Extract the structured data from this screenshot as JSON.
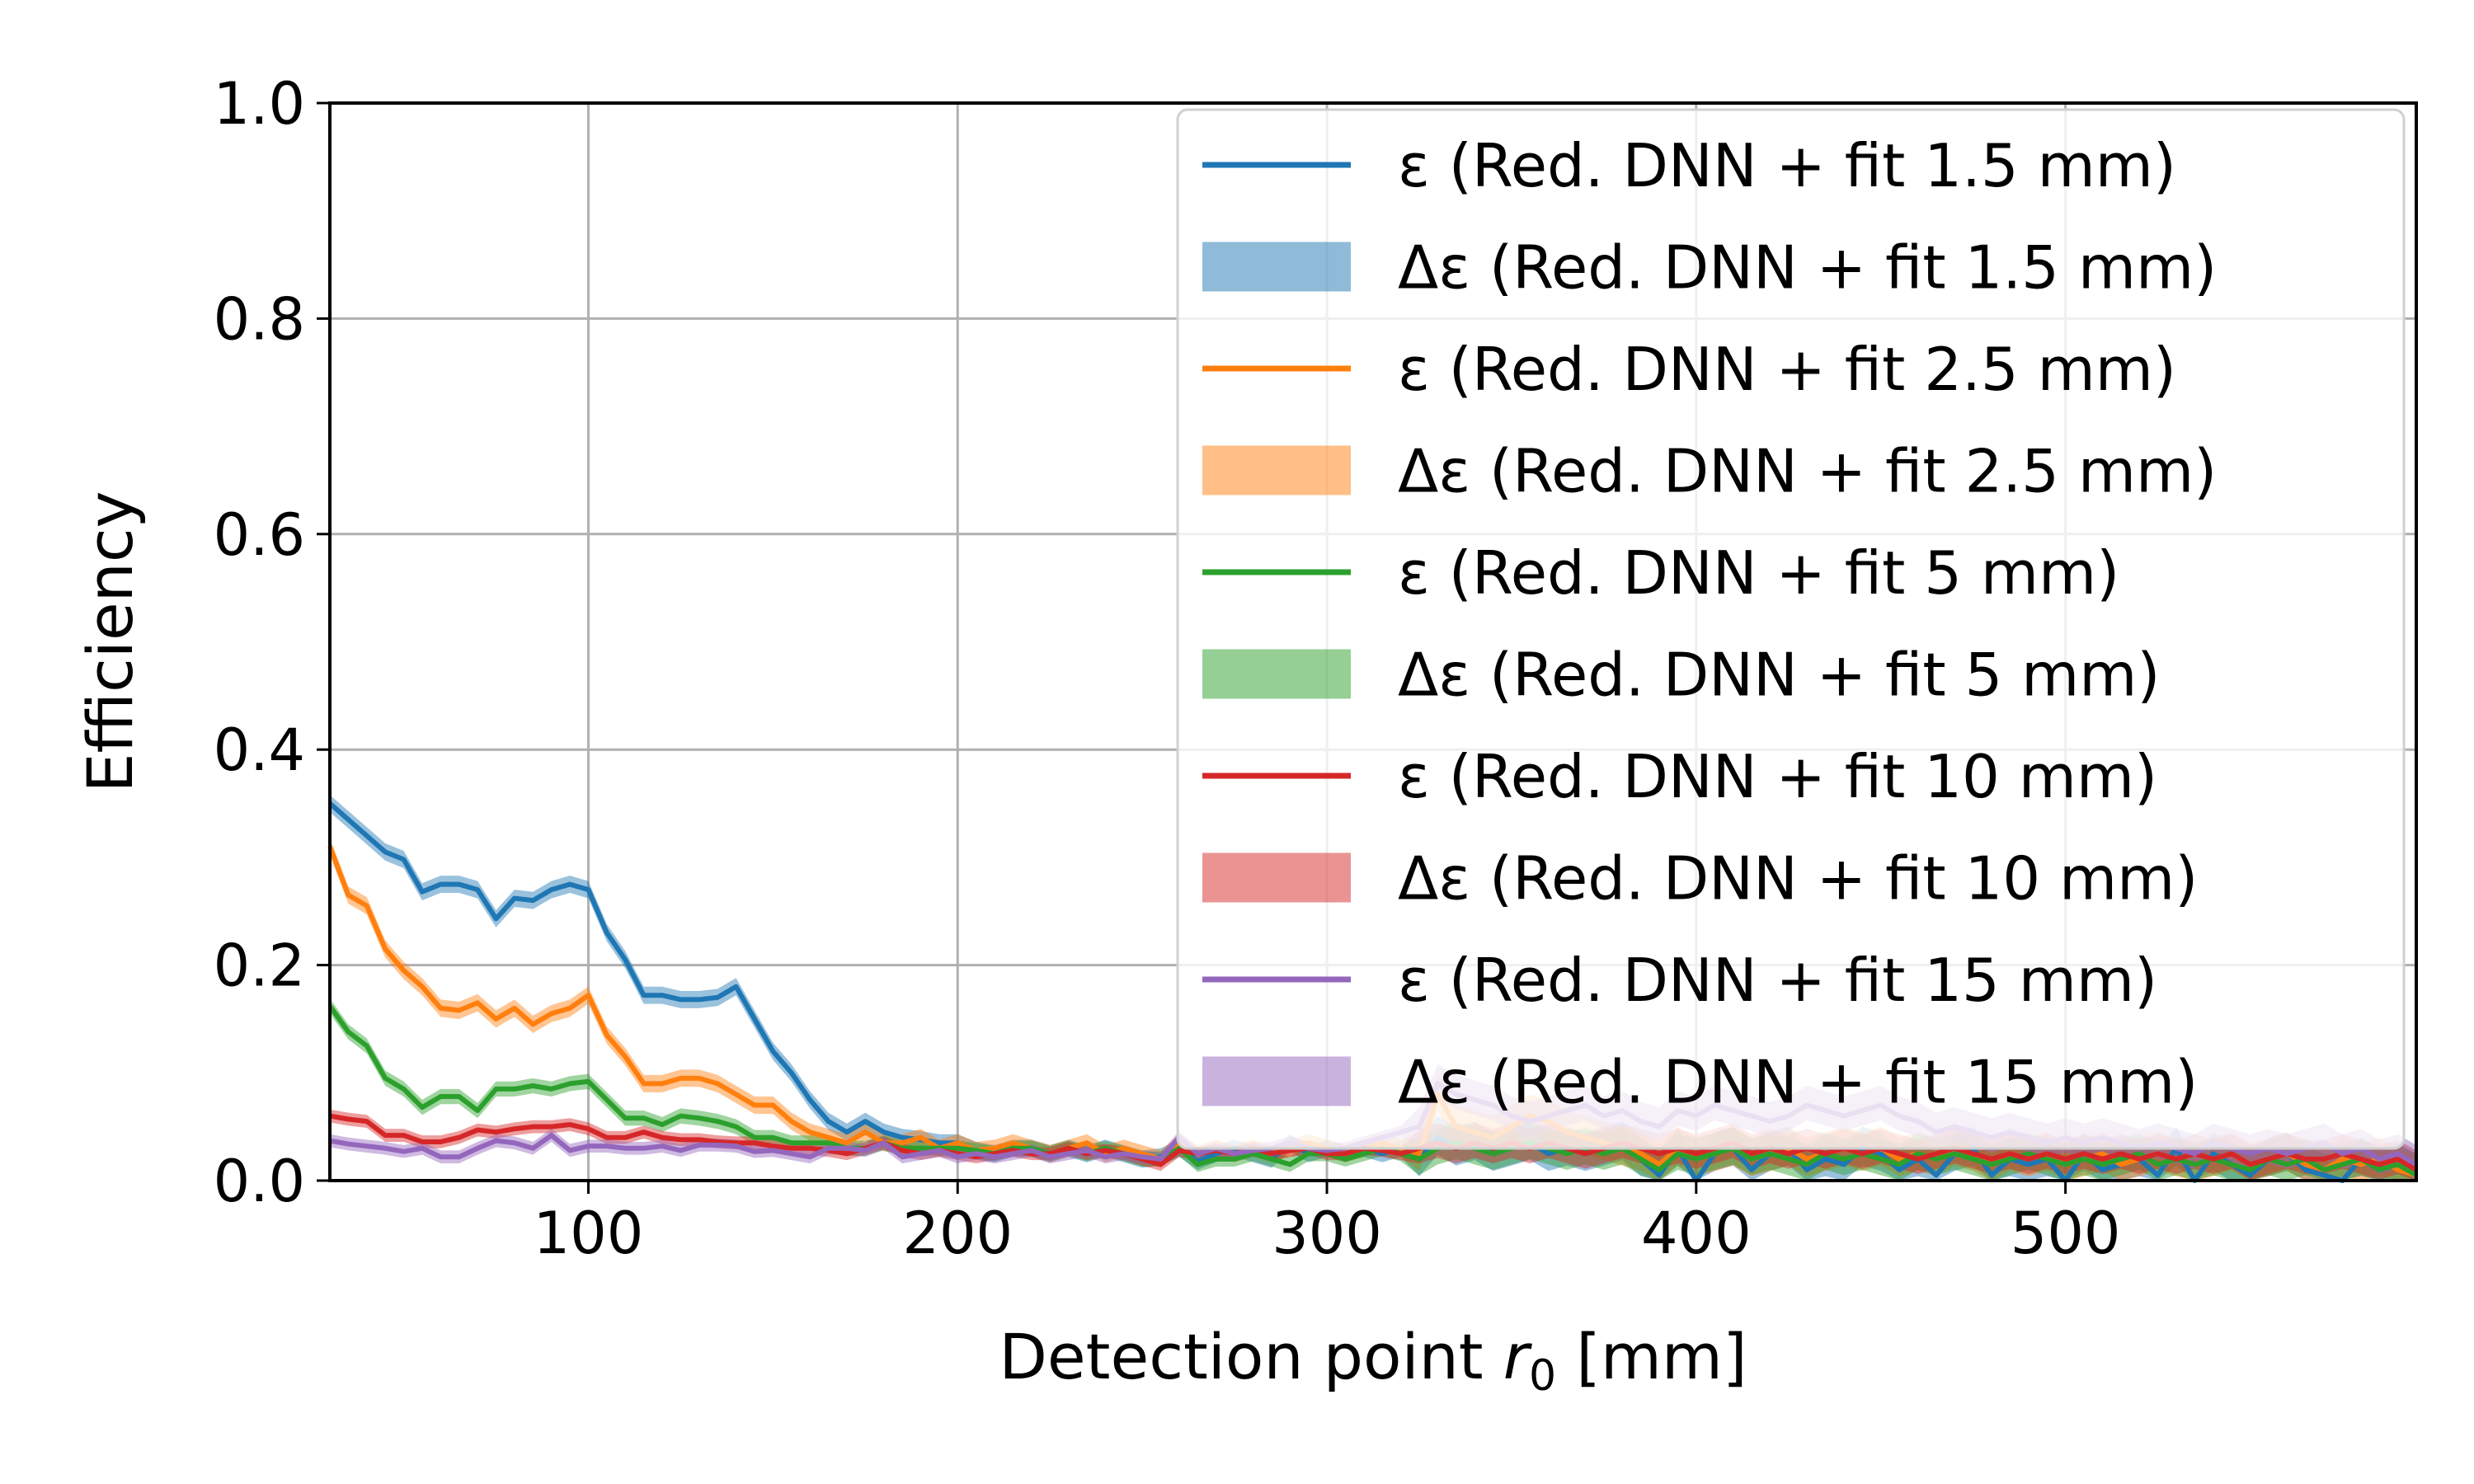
{
  "chart_data": {
    "type": "line",
    "xlabel": {
      "main": "Detection point ",
      "symbol": "r",
      "sub": "0",
      "unit": " [mm]"
    },
    "ylabel": "Efficiency",
    "xlim": [
      30,
      595
    ],
    "ylim": [
      0,
      1.0
    ],
    "xticks": [
      100,
      200,
      300,
      400,
      500
    ],
    "yticks": [
      0.0,
      0.2,
      0.4,
      0.6,
      0.8,
      1.0
    ],
    "grid": true,
    "legend_position": "upper right",
    "x": [
      30,
      35,
      40,
      45,
      50,
      55,
      60,
      65,
      70,
      75,
      80,
      85,
      90,
      95,
      100,
      105,
      110,
      115,
      120,
      125,
      130,
      135,
      140,
      145,
      150,
      155,
      160,
      165,
      170,
      175,
      180,
      185,
      190,
      195,
      200,
      205,
      210,
      215,
      220,
      225,
      230,
      235,
      240,
      245,
      250,
      255,
      260,
      265,
      270,
      275,
      280,
      285,
      290,
      295,
      300,
      305,
      310,
      315,
      320,
      325,
      330,
      335,
      340,
      345,
      350,
      355,
      360,
      365,
      370,
      375,
      380,
      385,
      390,
      395,
      400,
      405,
      410,
      415,
      420,
      425,
      430,
      435,
      440,
      445,
      450,
      455,
      460,
      465,
      470,
      475,
      480,
      485,
      490,
      495,
      500,
      505,
      510,
      515,
      520,
      525,
      530,
      535,
      540,
      545,
      550,
      555,
      560,
      565,
      570,
      575,
      580,
      585,
      590,
      595
    ],
    "series": [
      {
        "name": "ε (Red. DNN + fit 1.5 mm)",
        "band_name": "Δε (Red. DNN + fit 1.5 mm)",
        "color": "#1f77b4",
        "band_color": "#1f77b4",
        "band_halfwidth": 0.008,
        "y": [
          0.35,
          0.335,
          0.32,
          0.305,
          0.298,
          0.268,
          0.275,
          0.275,
          0.27,
          0.243,
          0.262,
          0.26,
          0.27,
          0.275,
          0.27,
          0.23,
          0.205,
          0.172,
          0.172,
          0.168,
          0.168,
          0.17,
          0.18,
          0.15,
          0.12,
          0.1,
          0.075,
          0.055,
          0.045,
          0.055,
          0.045,
          0.04,
          0.038,
          0.035,
          0.035,
          0.028,
          0.025,
          0.03,
          0.03,
          0.025,
          0.03,
          0.025,
          0.03,
          0.025,
          0.02,
          0.022,
          0.03,
          0.018,
          0.025,
          0.03,
          0.025,
          0.02,
          0.035,
          0.025,
          0.03,
          0.025,
          0.03,
          0.025,
          0.03,
          0.02,
          0.04,
          0.03,
          0.035,
          0.025,
          0.03,
          0.035,
          0.025,
          0.03,
          0.025,
          0.03,
          0.035,
          0.02,
          0.005,
          0.03,
          0.0,
          0.025,
          0.03,
          0.01,
          0.025,
          0.03,
          0.01,
          0.02,
          0.015,
          0.03,
          0.025,
          0.01,
          0.02,
          0.005,
          0.025,
          0.03,
          0.005,
          0.02,
          0.015,
          0.02,
          0.0,
          0.025,
          0.01,
          0.015,
          0.02,
          0.005,
          0.03,
          0.0,
          0.025,
          0.015,
          0.005,
          0.02,
          0.025,
          0.01,
          0.005,
          0.0,
          0.02,
          0.01,
          0.015,
          0.005
        ]
      },
      {
        "name": "ε (Red. DNN + fit 2.5 mm)",
        "band_name": "Δε (Red. DNN + fit 2.5 mm)",
        "color": "#ff7f0e",
        "band_color": "#ff7f0e",
        "band_halfwidth": 0.008,
        "y": [
          0.31,
          0.265,
          0.255,
          0.215,
          0.195,
          0.18,
          0.16,
          0.158,
          0.165,
          0.15,
          0.16,
          0.145,
          0.155,
          0.16,
          0.172,
          0.135,
          0.115,
          0.09,
          0.09,
          0.095,
          0.095,
          0.09,
          0.08,
          0.07,
          0.07,
          0.055,
          0.045,
          0.04,
          0.035,
          0.045,
          0.035,
          0.035,
          0.04,
          0.03,
          0.035,
          0.028,
          0.03,
          0.035,
          0.03,
          0.025,
          0.03,
          0.035,
          0.025,
          0.03,
          0.025,
          0.02,
          0.035,
          0.025,
          0.03,
          0.025,
          0.03,
          0.025,
          0.03,
          0.035,
          0.03,
          0.025,
          0.03,
          0.035,
          0.03,
          0.025,
          0.08,
          0.05,
          0.045,
          0.04,
          0.05,
          0.06,
          0.055,
          0.045,
          0.04,
          0.035,
          0.03,
          0.025,
          0.015,
          0.03,
          0.02,
          0.025,
          0.03,
          0.02,
          0.025,
          0.03,
          0.02,
          0.025,
          0.03,
          0.025,
          0.03,
          0.02,
          0.025,
          0.02,
          0.03,
          0.025,
          0.015,
          0.025,
          0.02,
          0.025,
          0.015,
          0.02,
          0.025,
          0.015,
          0.02,
          0.025,
          0.02,
          0.015,
          0.02,
          0.025,
          0.015,
          0.02,
          0.025,
          0.015,
          0.01,
          0.02,
          0.015,
          0.02,
          0.01,
          0.005
        ]
      },
      {
        "name": "ε (Red. DNN + fit 5 mm)",
        "band_name": "Δε (Red. DNN + fit 5 mm)",
        "color": "#2ca02c",
        "band_color": "#2ca02c",
        "band_halfwidth": 0.007,
        "y": [
          0.162,
          0.138,
          0.125,
          0.095,
          0.085,
          0.068,
          0.078,
          0.078,
          0.065,
          0.085,
          0.085,
          0.088,
          0.085,
          0.09,
          0.092,
          0.075,
          0.058,
          0.058,
          0.052,
          0.06,
          0.058,
          0.055,
          0.05,
          0.04,
          0.04,
          0.035,
          0.035,
          0.035,
          0.03,
          0.03,
          0.035,
          0.03,
          0.03,
          0.03,
          0.03,
          0.028,
          0.025,
          0.03,
          0.03,
          0.025,
          0.03,
          0.025,
          0.03,
          0.025,
          0.02,
          0.02,
          0.03,
          0.015,
          0.02,
          0.02,
          0.025,
          0.02,
          0.015,
          0.025,
          0.025,
          0.02,
          0.025,
          0.03,
          0.025,
          0.02,
          0.03,
          0.035,
          0.03,
          0.025,
          0.03,
          0.035,
          0.03,
          0.025,
          0.03,
          0.025,
          0.03,
          0.02,
          0.01,
          0.025,
          0.02,
          0.025,
          0.03,
          0.02,
          0.025,
          0.02,
          0.015,
          0.025,
          0.02,
          0.025,
          0.02,
          0.015,
          0.025,
          0.02,
          0.025,
          0.02,
          0.015,
          0.02,
          0.025,
          0.02,
          0.015,
          0.02,
          0.015,
          0.02,
          0.025,
          0.015,
          0.02,
          0.015,
          0.02,
          0.015,
          0.01,
          0.02,
          0.015,
          0.02,
          0.01,
          0.015,
          0.02,
          0.01,
          0.015,
          0.005
        ]
      },
      {
        "name": "ε (Red. DNN + fit 10 mm)",
        "band_name": "Δε (Red. DNN + fit 10 mm)",
        "color": "#d62728",
        "band_color": "#d62728",
        "band_halfwidth": 0.006,
        "y": [
          0.06,
          0.057,
          0.055,
          0.042,
          0.042,
          0.036,
          0.036,
          0.04,
          0.047,
          0.045,
          0.048,
          0.05,
          0.05,
          0.052,
          0.048,
          0.04,
          0.04,
          0.045,
          0.04,
          0.038,
          0.038,
          0.036,
          0.035,
          0.035,
          0.032,
          0.03,
          0.03,
          0.028,
          0.025,
          0.03,
          0.035,
          0.028,
          0.025,
          0.028,
          0.025,
          0.022,
          0.025,
          0.028,
          0.025,
          0.025,
          0.03,
          0.025,
          0.028,
          0.025,
          0.02,
          0.015,
          0.028,
          0.025,
          0.028,
          0.025,
          0.03,
          0.025,
          0.028,
          0.03,
          0.025,
          0.025,
          0.03,
          0.028,
          0.025,
          0.03,
          0.035,
          0.03,
          0.035,
          0.03,
          0.035,
          0.03,
          0.035,
          0.03,
          0.025,
          0.03,
          0.035,
          0.03,
          0.025,
          0.03,
          0.025,
          0.03,
          0.035,
          0.025,
          0.03,
          0.025,
          0.03,
          0.025,
          0.03,
          0.025,
          0.03,
          0.025,
          0.02,
          0.025,
          0.03,
          0.025,
          0.02,
          0.025,
          0.02,
          0.025,
          0.02,
          0.025,
          0.02,
          0.025,
          0.02,
          0.025,
          0.02,
          0.025,
          0.02,
          0.025,
          0.015,
          0.02,
          0.025,
          0.02,
          0.02,
          0.025,
          0.02,
          0.015,
          0.02,
          0.01
        ]
      },
      {
        "name": "ε (Red. DNN + fit 15 mm)",
        "band_name": "Δε (Red. DNN + fit 15 mm)",
        "color": "#9467bd",
        "band_color": "#9467bd",
        "band_halfwidth": 0.006,
        "y": [
          0.037,
          0.034,
          0.032,
          0.03,
          0.027,
          0.03,
          0.022,
          0.022,
          0.03,
          0.037,
          0.035,
          0.03,
          0.042,
          0.028,
          0.032,
          0.032,
          0.03,
          0.03,
          0.032,
          0.028,
          0.033,
          0.033,
          0.032,
          0.027,
          0.028,
          0.025,
          0.022,
          0.03,
          0.03,
          0.028,
          0.035,
          0.022,
          0.025,
          0.028,
          0.022,
          0.025,
          0.022,
          0.025,
          0.028,
          0.022,
          0.025,
          0.028,
          0.022,
          0.025,
          0.022,
          0.02,
          0.04,
          0.025,
          0.03,
          0.025,
          0.028,
          0.03,
          0.035,
          0.03,
          0.028,
          0.03,
          0.035,
          0.04,
          0.045,
          0.05,
          0.09,
          0.08,
          0.075,
          0.07,
          0.06,
          0.055,
          0.06,
          0.065,
          0.07,
          0.06,
          0.065,
          0.055,
          0.05,
          0.065,
          0.06,
          0.07,
          0.065,
          0.06,
          0.055,
          0.06,
          0.07,
          0.065,
          0.06,
          0.065,
          0.07,
          0.06,
          0.055,
          0.045,
          0.05,
          0.045,
          0.04,
          0.045,
          0.04,
          0.035,
          0.04,
          0.035,
          0.04,
          0.035,
          0.03,
          0.035,
          0.03,
          0.025,
          0.035,
          0.03,
          0.025,
          0.03,
          0.025,
          0.03,
          0.035,
          0.025,
          0.03,
          0.02,
          0.025,
          0.015
        ]
      }
    ]
  }
}
